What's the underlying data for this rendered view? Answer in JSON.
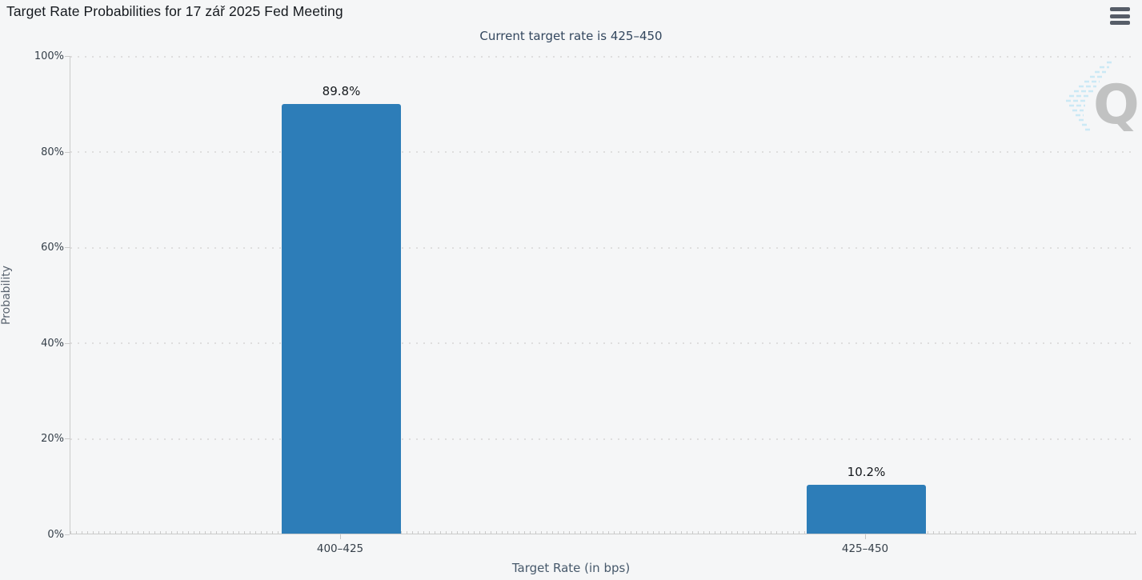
{
  "header": {
    "title": "Target Rate Probabilities for 17 zář 2025 Fed Meeting",
    "menu_icon": "hamburger-menu-icon"
  },
  "chart_data": {
    "type": "bar",
    "title": "Target Rate Probabilities for 17 zář 2025 Fed Meeting",
    "subtitle": "Current target rate is 425–450",
    "categories": [
      "400–425",
      "425–450"
    ],
    "values": [
      89.8,
      10.2
    ],
    "value_labels": [
      "89.8%",
      "10.2%"
    ],
    "xlabel": "Target Rate (in bps)",
    "ylabel": "Probability",
    "ylim": [
      0,
      100
    ],
    "yticks": [
      "0%",
      "20%",
      "40%",
      "60%",
      "80%",
      "100%"
    ],
    "grid": "horizontal dotted gridlines every 20%",
    "legend_position": "none",
    "bar_color": "#2d7db8",
    "watermark": "quikstrike-q-logo"
  },
  "colors": {
    "background": "#f5f6f7",
    "bar": "#2d7db8",
    "title_text": "#15191e",
    "subtitle_text": "#33475e",
    "axis_line": "#cbcbcb",
    "tick_text": "#36404a",
    "menu_icon": "#565d68",
    "watermark_q": "#b9b9b9",
    "watermark_dashes": "#b5e2f5"
  }
}
